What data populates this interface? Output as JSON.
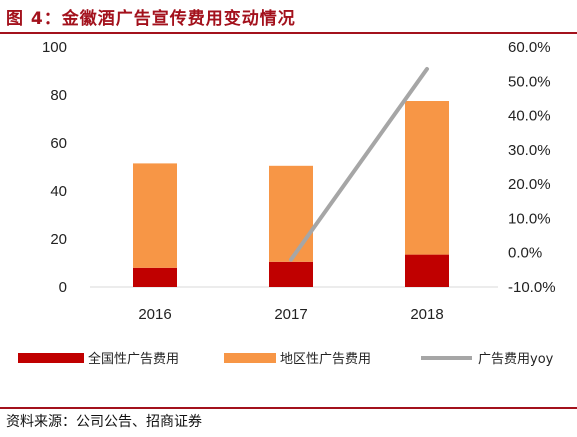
{
  "title": "图 4：金徽酒广告宣传费用变动情况",
  "source": "资料来源：公司公告、招商证券",
  "colors": {
    "national": "#c00000",
    "regional": "#f79646",
    "yoy": "#a6a6a6",
    "accent": "#a3111c"
  },
  "chart_data": {
    "type": "bar",
    "stacked": true,
    "categories": [
      "2016",
      "2017",
      "2018"
    ],
    "series": [
      {
        "name": "全国性广告费用",
        "values": [
          8,
          10.5,
          13.5
        ],
        "axis": "left"
      },
      {
        "name": "地区性广告费用",
        "values": [
          43.5,
          40,
          64
        ],
        "axis": "left"
      }
    ],
    "line_series": {
      "name": "广告费用yoy",
      "values": [
        null,
        -0.02,
        0.536
      ],
      "axis": "right"
    },
    "ylim": [
      0,
      100
    ],
    "yticks": [
      "0",
      "20",
      "40",
      "60",
      "80",
      "100"
    ],
    "y2lim": [
      -0.1,
      0.6
    ],
    "y2ticks": [
      "-10.0%",
      "0.0%",
      "10.0%",
      "20.0%",
      "30.0%",
      "40.0%",
      "50.0%",
      "60.0%"
    ],
    "legend_position": "bottom",
    "grid": false
  }
}
